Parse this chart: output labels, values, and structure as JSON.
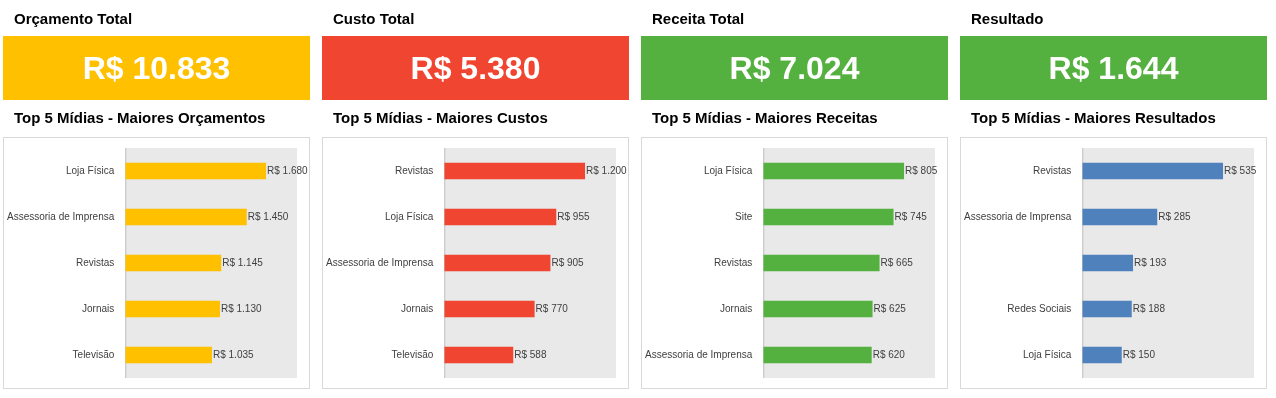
{
  "chart_data": [
    {
      "type": "other",
      "title": "Orçamento Total",
      "annotations": [
        "R$ 10.833"
      ],
      "color": "#ffc000"
    },
    {
      "type": "other",
      "title": "Custo Total",
      "annotations": [
        "R$ 5.380"
      ],
      "color": "#f04530"
    },
    {
      "type": "other",
      "title": "Receita Total",
      "annotations": [
        "R$ 7.024"
      ],
      "color": "#55b13f"
    },
    {
      "type": "other",
      "title": "Resultado",
      "annotations": [
        "R$ 1.644"
      ],
      "color": "#55b13f"
    },
    {
      "type": "bar",
      "orientation": "horizontal",
      "tick_labels": "y",
      "title": "Top 5 Mídias - Maiores Orçamentos",
      "categories": [
        "Loja Física",
        "Assessoria de Imprensa",
        "Revistas",
        "Jornais",
        "Televisão"
      ],
      "values": [
        1680,
        1450,
        1145,
        1130,
        1035
      ],
      "value_labels": [
        "R$ 1.680",
        "R$ 1.450",
        "R$ 1.145",
        "R$ 1.130",
        "R$ 1.035"
      ],
      "color": "#ffc000"
    },
    {
      "type": "bar",
      "orientation": "horizontal",
      "tick_labels": "y",
      "title": "Top 5 Mídias - Maiores Custos",
      "categories": [
        "Revistas",
        "Loja Física",
        "Assessoria de Imprensa",
        "Jornais",
        "Televisão"
      ],
      "values": [
        1200,
        955,
        905,
        770,
        588
      ],
      "value_labels": [
        "R$ 1.200",
        "R$ 955",
        "R$ 905",
        "R$ 770",
        "R$ 588"
      ],
      "color": "#f04530"
    },
    {
      "type": "bar",
      "orientation": "horizontal",
      "tick_labels": "y",
      "title": "Top 5 Mídias - Maiores Receitas",
      "categories": [
        "Loja Física",
        "Site",
        "Revistas",
        "Jornais",
        "Assessoria de Imprensa"
      ],
      "values": [
        805,
        745,
        665,
        625,
        620
      ],
      "value_labels": [
        "R$ 805",
        "R$ 745",
        "R$ 665",
        "R$ 625",
        "R$ 620"
      ],
      "color": "#55b13f"
    },
    {
      "type": "bar",
      "orientation": "horizontal",
      "tick_labels": "y",
      "title": "Top 5 Mídias - Maiores Resultados",
      "categories": [
        "Revistas",
        "Assessoria de Imprensa",
        null,
        "Redes Sociais",
        "Loja Física"
      ],
      "values": [
        535,
        285,
        193,
        188,
        150
      ],
      "value_labels": [
        "R$ 535",
        "R$ 285",
        "R$ 193",
        "R$ 188",
        "R$ 150"
      ],
      "color": "#4f81bd"
    }
  ]
}
